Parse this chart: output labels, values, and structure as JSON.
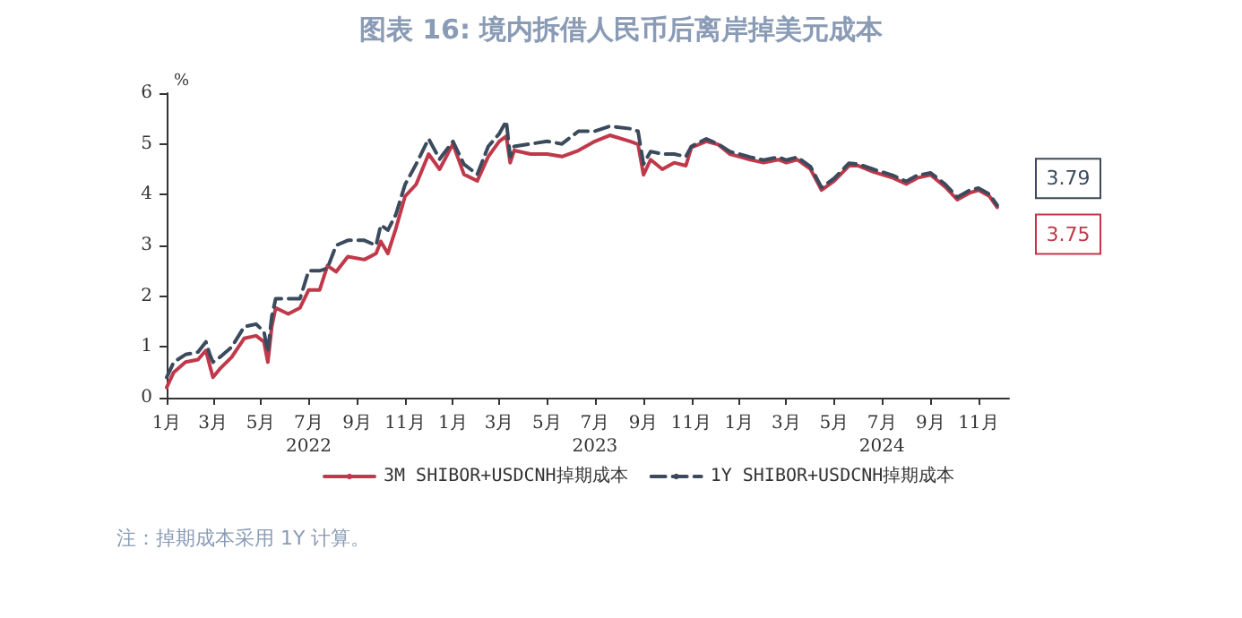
{
  "chart_data": {
    "type": "line",
    "title": "图表 16: 境内拆借人民币后离岸掉美元成本",
    "ylabel": "%",
    "x": [
      "2022-01-01",
      "2022-01-10",
      "2022-01-25",
      "2022-02-10",
      "2022-02-20",
      "2022-02-25",
      "2022-03-01",
      "2022-03-10",
      "2022-03-25",
      "2022-04-10",
      "2022-04-25",
      "2022-05-05",
      "2022-05-10",
      "2022-05-15",
      "2022-05-20",
      "2022-06-05",
      "2022-06-20",
      "2022-07-01",
      "2022-07-15",
      "2022-07-25",
      "2022-08-05",
      "2022-08-20",
      "2022-09-10",
      "2022-09-25",
      "2022-10-01",
      "2022-10-10",
      "2022-10-20",
      "2022-11-01",
      "2022-11-15",
      "2022-12-01",
      "2022-12-15",
      "2023-01-01",
      "2023-01-15",
      "2023-02-01",
      "2023-02-15",
      "2023-03-01",
      "2023-03-10",
      "2023-03-15",
      "2023-03-20",
      "2023-04-10",
      "2023-05-01",
      "2023-05-20",
      "2023-06-10",
      "2023-07-01",
      "2023-07-20",
      "2023-08-15",
      "2023-08-25",
      "2023-09-01",
      "2023-09-10",
      "2023-09-25",
      "2023-10-10",
      "2023-10-25",
      "2023-11-01",
      "2023-11-20",
      "2023-12-05",
      "2023-12-20",
      "2024-01-01",
      "2024-01-15",
      "2024-02-01",
      "2024-02-20",
      "2024-03-01",
      "2024-03-15",
      "2024-04-01",
      "2024-04-15",
      "2024-05-01",
      "2024-05-20",
      "2024-06-01",
      "2024-06-20",
      "2024-07-15",
      "2024-08-01",
      "2024-08-15",
      "2024-09-01",
      "2024-09-20",
      "2024-10-05",
      "2024-10-20",
      "2024-11-01",
      "2024-11-15",
      "2024-11-25"
    ],
    "series": [
      {
        "name": "3M SHIBOR+USDCNH掉期成本",
        "color": "#c0394b",
        "line_style": "solid",
        "values": [
          0.2,
          0.5,
          0.7,
          0.75,
          0.93,
          0.63,
          0.4,
          0.57,
          0.8,
          1.17,
          1.22,
          1.1,
          0.7,
          1.4,
          1.77,
          1.65,
          1.77,
          2.12,
          2.12,
          2.6,
          2.48,
          2.78,
          2.72,
          2.84,
          3.08,
          2.84,
          3.32,
          3.97,
          4.2,
          4.8,
          4.5,
          5.0,
          4.4,
          4.27,
          4.75,
          5.05,
          5.15,
          4.63,
          4.87,
          4.8,
          4.8,
          4.75,
          4.87,
          5.05,
          5.17,
          5.05,
          4.99,
          4.39,
          4.69,
          4.5,
          4.63,
          4.57,
          4.93,
          5.05,
          4.99,
          4.8,
          4.75,
          4.69,
          4.63,
          4.69,
          4.63,
          4.69,
          4.5,
          4.09,
          4.27,
          4.57,
          4.57,
          4.45,
          4.33,
          4.21,
          4.33,
          4.39,
          4.15,
          3.9,
          4.03,
          4.09,
          3.97,
          3.75
        ]
      },
      {
        "name": "1Y SHIBOR+USDCNH掉期成本",
        "color": "#3b4a5c",
        "line_style": "dashed",
        "values": [
          0.4,
          0.7,
          0.85,
          0.9,
          1.1,
          0.85,
          0.7,
          0.8,
          1.0,
          1.4,
          1.45,
          1.3,
          0.9,
          1.6,
          1.95,
          1.95,
          1.95,
          2.5,
          2.5,
          2.55,
          3.0,
          3.1,
          3.1,
          3.0,
          3.4,
          3.3,
          3.6,
          4.2,
          4.6,
          5.1,
          4.7,
          5.05,
          4.6,
          4.4,
          4.95,
          5.2,
          5.45,
          4.75,
          4.95,
          5.0,
          5.05,
          5.0,
          5.25,
          5.25,
          5.35,
          5.3,
          5.25,
          4.6,
          4.85,
          4.8,
          4.8,
          4.75,
          4.95,
          5.1,
          5.0,
          4.85,
          4.8,
          4.74,
          4.68,
          4.74,
          4.68,
          4.74,
          4.55,
          4.14,
          4.32,
          4.62,
          4.6,
          4.5,
          4.38,
          4.26,
          4.38,
          4.43,
          4.2,
          3.95,
          4.08,
          4.13,
          4.01,
          3.79
        ]
      }
    ],
    "xlim": [
      "2022-01-01",
      "2024-12-10"
    ],
    "xticks": [
      {
        "value": "2022-01-01",
        "label": "1月"
      },
      {
        "value": "2022-03-01",
        "label": "3月"
      },
      {
        "value": "2022-05-01",
        "label": "5月"
      },
      {
        "value": "2022-07-01",
        "label": "7月\n2022"
      },
      {
        "value": "2022-09-01",
        "label": "9月"
      },
      {
        "value": "2022-11-01",
        "label": "11月"
      },
      {
        "value": "2023-01-01",
        "label": "1月"
      },
      {
        "value": "2023-03-01",
        "label": "3月"
      },
      {
        "value": "2023-05-01",
        "label": "5月"
      },
      {
        "value": "2023-07-01",
        "label": "7月\n2023"
      },
      {
        "value": "2023-09-01",
        "label": "9月"
      },
      {
        "value": "2023-11-01",
        "label": "11月"
      },
      {
        "value": "2024-01-01",
        "label": "1月"
      },
      {
        "value": "2024-03-01",
        "label": "3月"
      },
      {
        "value": "2024-05-01",
        "label": "5月"
      },
      {
        "value": "2024-07-01",
        "label": "7月\n2024"
      },
      {
        "value": "2024-09-01",
        "label": "9月"
      },
      {
        "value": "2024-11-01",
        "label": "11月"
      }
    ],
    "ylim": [
      0,
      6
    ],
    "yticks": [
      0,
      1,
      2,
      3,
      4,
      5,
      6
    ],
    "grid": false,
    "legend": "bottom",
    "annotations": [
      {
        "text": "3.79",
        "x": "2024-11-25",
        "y": 3.79
      },
      {
        "text": "3.75",
        "x": "2024-11-25",
        "y": 3.75
      },
      "注：掉期成本采用 1Y 计算。"
    ]
  }
}
